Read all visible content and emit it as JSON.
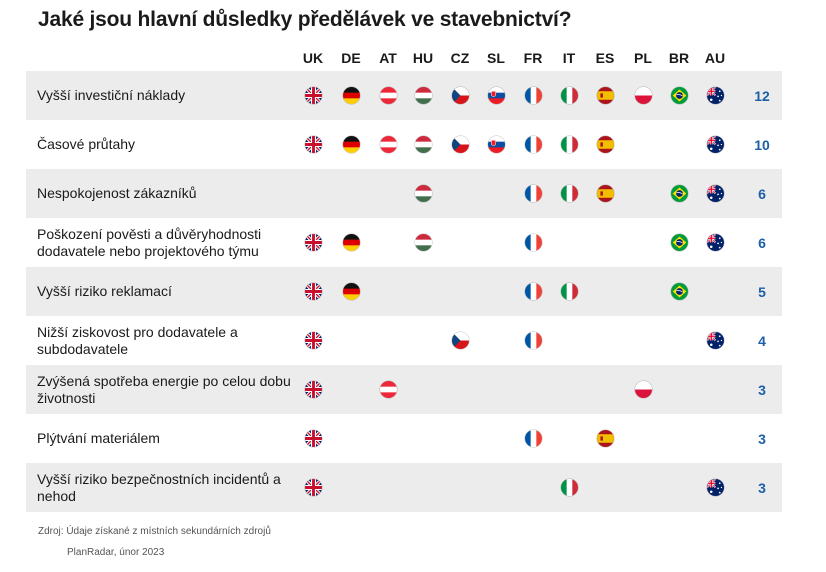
{
  "title": "Jaké jsou hlavní důsledky předělávek ve stavebnictví?",
  "source": "Zdroj: Údaje získané z místních sekundárních zdrojů",
  "credit": "PlanRadar, únor 2023",
  "count_color": "#1c5fa8",
  "chart_data": {
    "type": "table",
    "columns": [
      "UK",
      "DE",
      "AT",
      "HU",
      "CZ",
      "SL",
      "FR",
      "IT",
      "ES",
      "PL",
      "BR",
      "AU"
    ],
    "rows": [
      {
        "label": "Vyšší investiční náklady",
        "countries": [
          "UK",
          "DE",
          "AT",
          "HU",
          "CZ",
          "SL",
          "FR",
          "IT",
          "ES",
          "PL",
          "BR",
          "AU"
        ],
        "count": "12"
      },
      {
        "label": "Časové průtahy",
        "countries": [
          "UK",
          "DE",
          "AT",
          "HU",
          "CZ",
          "SL",
          "FR",
          "IT",
          "ES",
          "AU"
        ],
        "count": "10"
      },
      {
        "label": "Nespokojenost zákazníků",
        "countries": [
          "HU",
          "FR",
          "IT",
          "ES",
          "BR",
          "AU"
        ],
        "count": "6"
      },
      {
        "label": "Poškození pověsti a důvěryhodnosti dodavatele nebo projektového týmu",
        "countries": [
          "UK",
          "DE",
          "HU",
          "FR",
          "BR",
          "AU"
        ],
        "count": "6"
      },
      {
        "label": "Vyšší riziko reklamací",
        "countries": [
          "UK",
          "DE",
          "FR",
          "IT",
          "BR"
        ],
        "count": "5"
      },
      {
        "label": "Nižší ziskovost pro dodavatele a subdodavatele",
        "countries": [
          "UK",
          "CZ",
          "FR",
          "AU"
        ],
        "count": "4"
      },
      {
        "label": "Zvýšená spotřeba energie po celou dobu životnosti",
        "countries": [
          "UK",
          "AT",
          "PL"
        ],
        "count": "3"
      },
      {
        "label": "Plýtvání materiálem",
        "countries": [
          "UK",
          "FR",
          "ES"
        ],
        "count": "3"
      },
      {
        "label": "Vyšší riziko bezpečnostních incidentů a nehod",
        "countries": [
          "UK",
          "IT",
          "AU"
        ],
        "count": "3"
      }
    ]
  }
}
